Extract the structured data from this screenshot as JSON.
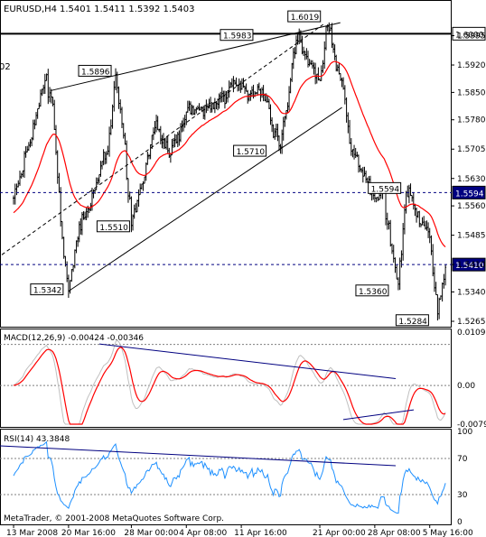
{
  "header": {
    "symbol_timeframe": "EURUSD,H4",
    "ohlc": "1.5401 1.5411 1.5392 1.5403"
  },
  "footer": {
    "copyright": "MetaTrader, © 2001-2008 MetaQuotes Software Corp."
  },
  "colors": {
    "candles": "#000000",
    "moving_average": "#ff0000",
    "trend_lines": "#000000",
    "macd_divergence_lines": "#000080",
    "macd_signal": "#ff0000",
    "macd_main": "#c0c0c0",
    "rsi_line": "#1e90ff",
    "rsi_trend_line": "#000080"
  },
  "price_scale": {
    "labels": [
      "1.5995",
      "1.5920",
      "1.5850",
      "1.5780",
      "1.5705",
      "1.5630",
      "1.5560",
      "1.5485",
      "1.5410",
      "1.5340",
      "1.5265"
    ]
  },
  "horizontal_levels": [
    {
      "value": 1.6,
      "label": "1.6000",
      "style": "solid"
    },
    {
      "value": 1.5594,
      "label": "1.5594",
      "style": "dashed"
    },
    {
      "value": 1.541,
      "label": "1.5410",
      "style": "dashed"
    }
  ],
  "point_labels": [
    {
      "text": "1.6019",
      "price": 1.6019,
      "date": "2008-04-22"
    },
    {
      "text": "1.5983",
      "price": 1.5983,
      "date": "2008-04-18"
    },
    {
      "text": "1.5896",
      "price": 1.5896,
      "date": "2008-03-26"
    },
    {
      "text": "1.5710",
      "price": 1.571,
      "date": "2008-04-16"
    },
    {
      "text": "1.5594",
      "price": 1.5594,
      "date": "2008-05-02"
    },
    {
      "text": "1.5510",
      "price": 1.551,
      "date": "2008-03-28"
    },
    {
      "text": "1.5360",
      "price": 1.536,
      "date": "2008-05-01"
    },
    {
      "text": "1.5342",
      "price": 1.5342,
      "date": "2008-03-20"
    },
    {
      "text": "1.5284",
      "price": 1.5284,
      "date": "2008-05-06"
    }
  ],
  "left_edge_label": "02",
  "macd": {
    "label": "MACD(12,26,9) -0.00424 -0.00346",
    "scale_labels": [
      "0.01093",
      "0.00",
      "-0.00794"
    ]
  },
  "rsi": {
    "label": "RSI(14) 43.3848",
    "scale_labels": [
      "100",
      "70",
      "30",
      "0"
    ]
  },
  "time_axis": {
    "labels": [
      "13 Mar 2008",
      "20 Mar 16:00",
      "28 Mar 00:00",
      "4 Apr 08:00",
      "11 Apr 16:00",
      "21 Apr 00:00",
      "28 Apr 08:00",
      "5 May 16:00"
    ]
  },
  "chart_data": {
    "type": "candlestick",
    "title": "EURUSD,H4",
    "symbol": "EURUSD",
    "timeframe": "H4",
    "last_bar": {
      "open": 1.5401,
      "high": 1.5411,
      "low": 1.5392,
      "close": 1.5403
    },
    "ylim": [
      1.5265,
      1.604
    ],
    "x_tick_labels": [
      "13 Mar 2008",
      "20 Mar 16:00",
      "28 Mar 00:00",
      "4 Apr 08:00",
      "11 Apr 16:00",
      "21 Apr 00:00",
      "28 Apr 08:00",
      "5 May 16:00"
    ],
    "swing_points": [
      {
        "date": "2008-03-13",
        "price": 1.558
      },
      {
        "date": "2008-03-14",
        "price": 1.564
      },
      {
        "date": "2008-03-17",
        "price": 1.588
      },
      {
        "date": "2008-03-18",
        "price": 1.582
      },
      {
        "date": "2008-03-19",
        "price": 1.552
      },
      {
        "date": "2008-03-20",
        "price": 1.5342
      },
      {
        "date": "2008-03-21",
        "price": 1.547
      },
      {
        "date": "2008-03-25",
        "price": 1.57
      },
      {
        "date": "2008-03-26",
        "price": 1.5896
      },
      {
        "date": "2008-03-27",
        "price": 1.574
      },
      {
        "date": "2008-03-28",
        "price": 1.551
      },
      {
        "date": "2008-03-31",
        "price": 1.576
      },
      {
        "date": "2008-04-02",
        "price": 1.569
      },
      {
        "date": "2008-04-04",
        "price": 1.58
      },
      {
        "date": "2008-04-08",
        "price": 1.582
      },
      {
        "date": "2008-04-10",
        "price": 1.588
      },
      {
        "date": "2008-04-14",
        "price": 1.583
      },
      {
        "date": "2008-04-16",
        "price": 1.571
      },
      {
        "date": "2008-04-18",
        "price": 1.5983
      },
      {
        "date": "2008-04-21",
        "price": 1.588
      },
      {
        "date": "2008-04-22",
        "price": 1.6019
      },
      {
        "date": "2008-04-24",
        "price": 1.586
      },
      {
        "date": "2008-04-25",
        "price": 1.57
      },
      {
        "date": "2008-04-28",
        "price": 1.558
      },
      {
        "date": "2008-04-29",
        "price": 1.56
      },
      {
        "date": "2008-04-30",
        "price": 1.546
      },
      {
        "date": "2008-05-01",
        "price": 1.536
      },
      {
        "date": "2008-05-02",
        "price": 1.5594
      },
      {
        "date": "2008-05-05",
        "price": 1.548
      },
      {
        "date": "2008-05-06",
        "price": 1.5284
      },
      {
        "date": "2008-05-07",
        "price": 1.5403
      }
    ],
    "macd_ylim": [
      -0.00794,
      0.01093
    ],
    "macd_values": {
      "main": -0.00424,
      "signal": -0.00346
    },
    "rsi_ylim": [
      0,
      100
    ],
    "rsi_value": 43.3848
  }
}
